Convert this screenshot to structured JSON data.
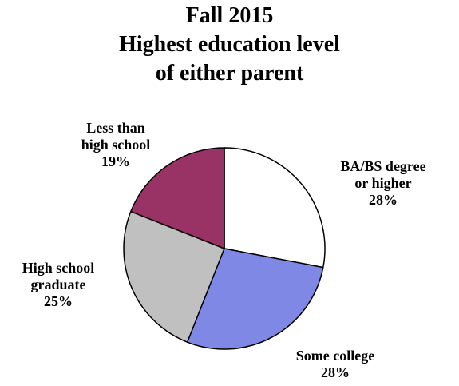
{
  "chart_data": {
    "type": "pie",
    "title_lines": [
      "Fall 2015",
      "Highest education level",
      "of either parent"
    ],
    "slices": [
      {
        "label_lines": [
          "BA/BS degree",
          "or higher"
        ],
        "value": 28,
        "value_label": "28%",
        "color": "#ffffff"
      },
      {
        "label_lines": [
          "Some college"
        ],
        "value": 28,
        "value_label": "28%",
        "color": "#8088e6"
      },
      {
        "label_lines": [
          "High school",
          "graduate"
        ],
        "value": 25,
        "value_label": "25%",
        "color": "#c0c0c0"
      },
      {
        "label_lines": [
          "Less than",
          "high school"
        ],
        "value": 19,
        "value_label": "19%",
        "color": "#993366"
      }
    ],
    "start_angle_deg": 0,
    "direction": "clockwise",
    "outline_color": "#000000",
    "legend": "none"
  }
}
